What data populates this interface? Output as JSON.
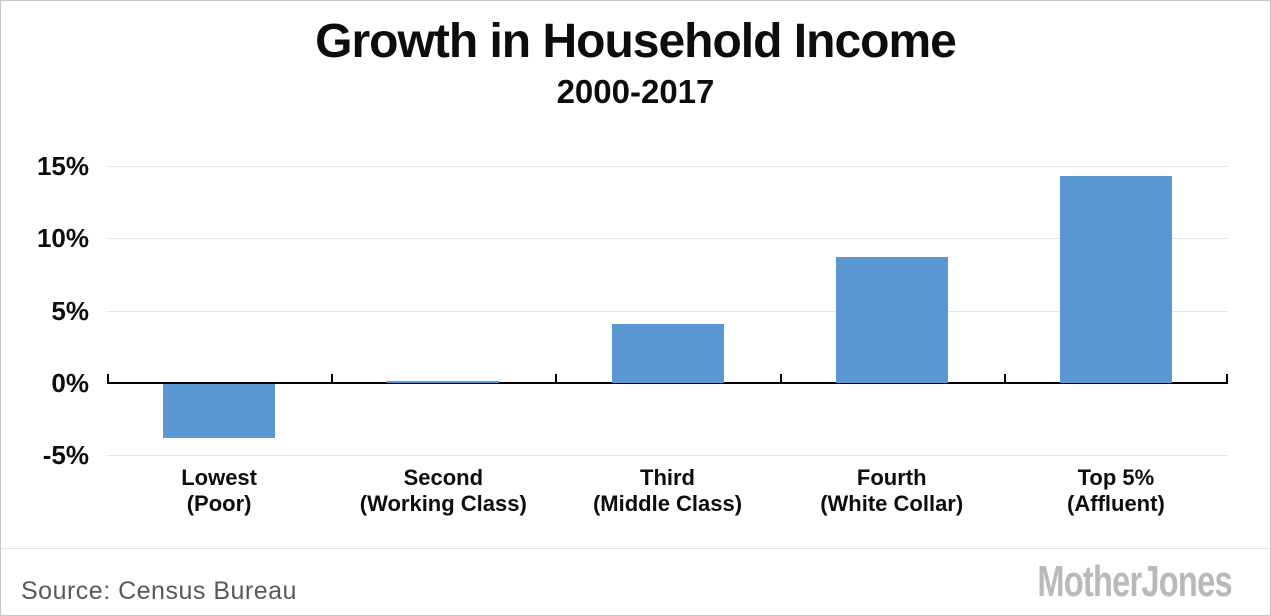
{
  "header": {
    "title": "Growth in Household Income",
    "subtitle": "2000-2017"
  },
  "footer": {
    "source": "Source: Census Bureau",
    "logo": "MotherJones"
  },
  "chart_data": {
    "type": "bar",
    "title": "Growth in Household Income",
    "subtitle": "2000-2017",
    "categories": [
      "Lowest (Poor)",
      "Second (Working Class)",
      "Third (Middle Class)",
      "Fourth (White Collar)",
      "Top 5% (Affluent)"
    ],
    "category_lines": [
      [
        "Lowest",
        "(Poor)"
      ],
      [
        "Second",
        "(Working Class)"
      ],
      [
        "Third",
        "(Middle Class)"
      ],
      [
        "Fourth",
        "(White Collar)"
      ],
      [
        "Top 5%",
        "(Affluent)"
      ]
    ],
    "values": [
      -3.7,
      0.1,
      4.1,
      8.7,
      14.3
    ],
    "unit": "%",
    "y_ticks": [
      15,
      10,
      5,
      0,
      -5
    ],
    "y_tick_labels": [
      "15%",
      "10%",
      "5%",
      "0%",
      "-5%"
    ],
    "ylim": [
      -5.5,
      17.4
    ],
    "xlabel": "",
    "ylabel": "",
    "grid": true,
    "legend_position": "none",
    "bar_color": "#5998d3",
    "gridline_color": "#e3e3e3",
    "axis_color": "#000000"
  }
}
